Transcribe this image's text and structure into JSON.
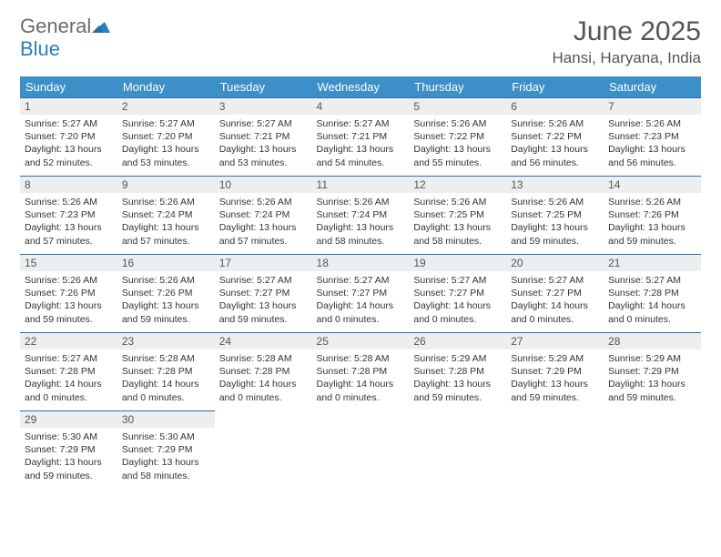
{
  "logo": {
    "text_gray": "General",
    "text_blue": "Blue",
    "icon_fill": "#2a7fbf"
  },
  "header": {
    "month_title": "June 2025",
    "location": "Hansi, Haryana, India"
  },
  "colors": {
    "header_bg": "#3c8fc7",
    "header_text": "#ffffff",
    "daynum_bg": "#eceeef",
    "border": "#2a6fa8",
    "body_text": "#333333",
    "title_text": "#555555"
  },
  "weekdays": [
    "Sunday",
    "Monday",
    "Tuesday",
    "Wednesday",
    "Thursday",
    "Friday",
    "Saturday"
  ],
  "weeks": [
    [
      {
        "n": "1",
        "sr": "5:27 AM",
        "ss": "7:20 PM",
        "dl": "13 hours and 52 minutes."
      },
      {
        "n": "2",
        "sr": "5:27 AM",
        "ss": "7:20 PM",
        "dl": "13 hours and 53 minutes."
      },
      {
        "n": "3",
        "sr": "5:27 AM",
        "ss": "7:21 PM",
        "dl": "13 hours and 53 minutes."
      },
      {
        "n": "4",
        "sr": "5:27 AM",
        "ss": "7:21 PM",
        "dl": "13 hours and 54 minutes."
      },
      {
        "n": "5",
        "sr": "5:26 AM",
        "ss": "7:22 PM",
        "dl": "13 hours and 55 minutes."
      },
      {
        "n": "6",
        "sr": "5:26 AM",
        "ss": "7:22 PM",
        "dl": "13 hours and 56 minutes."
      },
      {
        "n": "7",
        "sr": "5:26 AM",
        "ss": "7:23 PM",
        "dl": "13 hours and 56 minutes."
      }
    ],
    [
      {
        "n": "8",
        "sr": "5:26 AM",
        "ss": "7:23 PM",
        "dl": "13 hours and 57 minutes."
      },
      {
        "n": "9",
        "sr": "5:26 AM",
        "ss": "7:24 PM",
        "dl": "13 hours and 57 minutes."
      },
      {
        "n": "10",
        "sr": "5:26 AM",
        "ss": "7:24 PM",
        "dl": "13 hours and 57 minutes."
      },
      {
        "n": "11",
        "sr": "5:26 AM",
        "ss": "7:24 PM",
        "dl": "13 hours and 58 minutes."
      },
      {
        "n": "12",
        "sr": "5:26 AM",
        "ss": "7:25 PM",
        "dl": "13 hours and 58 minutes."
      },
      {
        "n": "13",
        "sr": "5:26 AM",
        "ss": "7:25 PM",
        "dl": "13 hours and 59 minutes."
      },
      {
        "n": "14",
        "sr": "5:26 AM",
        "ss": "7:26 PM",
        "dl": "13 hours and 59 minutes."
      }
    ],
    [
      {
        "n": "15",
        "sr": "5:26 AM",
        "ss": "7:26 PM",
        "dl": "13 hours and 59 minutes."
      },
      {
        "n": "16",
        "sr": "5:26 AM",
        "ss": "7:26 PM",
        "dl": "13 hours and 59 minutes."
      },
      {
        "n": "17",
        "sr": "5:27 AM",
        "ss": "7:27 PM",
        "dl": "13 hours and 59 minutes."
      },
      {
        "n": "18",
        "sr": "5:27 AM",
        "ss": "7:27 PM",
        "dl": "14 hours and 0 minutes."
      },
      {
        "n": "19",
        "sr": "5:27 AM",
        "ss": "7:27 PM",
        "dl": "14 hours and 0 minutes."
      },
      {
        "n": "20",
        "sr": "5:27 AM",
        "ss": "7:27 PM",
        "dl": "14 hours and 0 minutes."
      },
      {
        "n": "21",
        "sr": "5:27 AM",
        "ss": "7:28 PM",
        "dl": "14 hours and 0 minutes."
      }
    ],
    [
      {
        "n": "22",
        "sr": "5:27 AM",
        "ss": "7:28 PM",
        "dl": "14 hours and 0 minutes."
      },
      {
        "n": "23",
        "sr": "5:28 AM",
        "ss": "7:28 PM",
        "dl": "14 hours and 0 minutes."
      },
      {
        "n": "24",
        "sr": "5:28 AM",
        "ss": "7:28 PM",
        "dl": "14 hours and 0 minutes."
      },
      {
        "n": "25",
        "sr": "5:28 AM",
        "ss": "7:28 PM",
        "dl": "14 hours and 0 minutes."
      },
      {
        "n": "26",
        "sr": "5:29 AM",
        "ss": "7:28 PM",
        "dl": "13 hours and 59 minutes."
      },
      {
        "n": "27",
        "sr": "5:29 AM",
        "ss": "7:29 PM",
        "dl": "13 hours and 59 minutes."
      },
      {
        "n": "28",
        "sr": "5:29 AM",
        "ss": "7:29 PM",
        "dl": "13 hours and 59 minutes."
      }
    ],
    [
      {
        "n": "29",
        "sr": "5:30 AM",
        "ss": "7:29 PM",
        "dl": "13 hours and 59 minutes."
      },
      {
        "n": "30",
        "sr": "5:30 AM",
        "ss": "7:29 PM",
        "dl": "13 hours and 58 minutes."
      },
      null,
      null,
      null,
      null,
      null
    ]
  ],
  "labels": {
    "sunrise": "Sunrise:",
    "sunset": "Sunset:",
    "daylight": "Daylight:"
  }
}
